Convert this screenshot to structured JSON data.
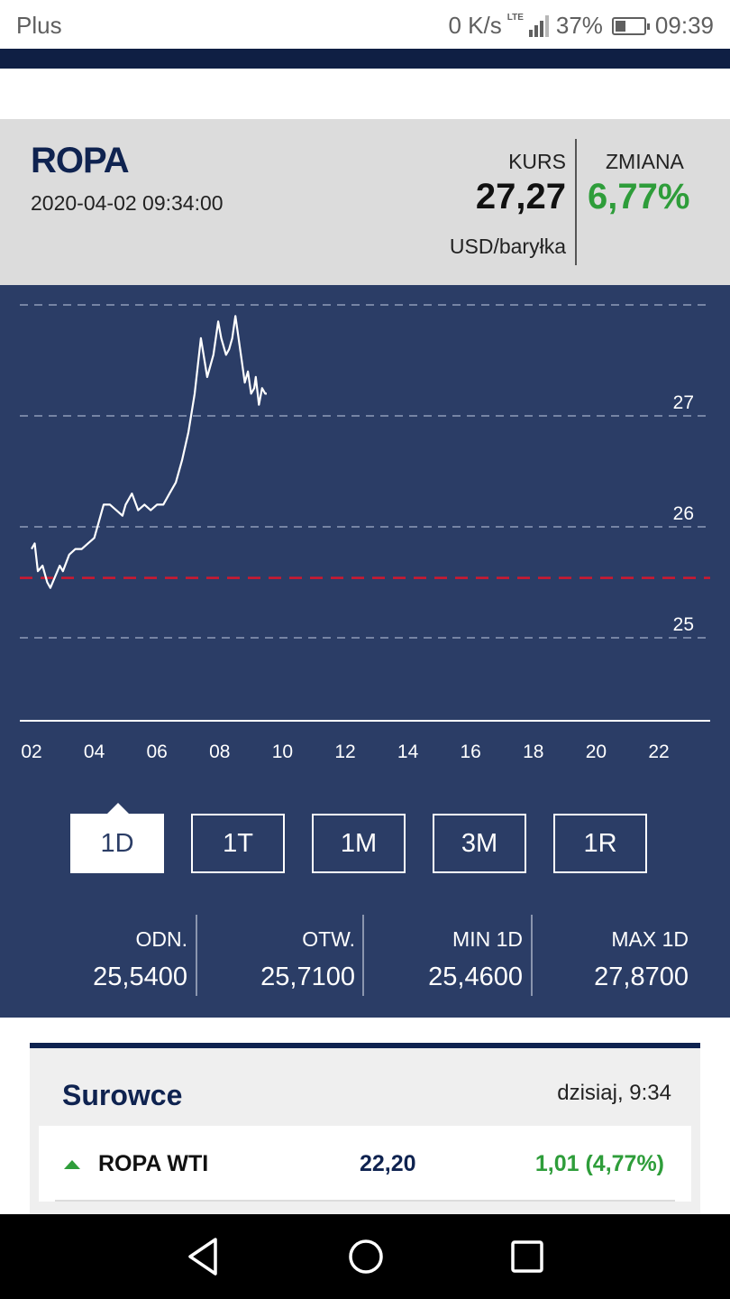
{
  "status_bar": {
    "carrier": "Plus",
    "network_speed": "0 K/s",
    "network_type": "LTE",
    "battery_percent": "37%",
    "battery_level": 0.37,
    "time": "09:39"
  },
  "header": {
    "title": "ROPA",
    "datetime": "2020-04-02 09:34:00",
    "kurs_label": "KURS",
    "kurs_value": "27,27",
    "unit": "USD/baryłka",
    "zmiana_label": "ZMIANA",
    "zmiana_value": "6,77%"
  },
  "chart_data": {
    "type": "line",
    "x_ticks": [
      "02",
      "04",
      "06",
      "08",
      "10",
      "12",
      "14",
      "16",
      "18",
      "20",
      "22"
    ],
    "y_ticks": [
      "25",
      "26",
      "27"
    ],
    "ylim": [
      24.2,
      28.2
    ],
    "xlim": [
      2,
      24
    ],
    "reference_line": 25.54,
    "series": [
      {
        "x": [
          2.0,
          2.1,
          2.2,
          2.35,
          2.5,
          2.6,
          2.75,
          2.9,
          3.0,
          3.2,
          3.4,
          3.6,
          3.8,
          4.0,
          4.1,
          4.3,
          4.5,
          4.7,
          4.9,
          5.0,
          5.2,
          5.4,
          5.6,
          5.8,
          6.0,
          6.2,
          6.4,
          6.6,
          6.8,
          7.0,
          7.2,
          7.4,
          7.6,
          7.8,
          7.95,
          8.05,
          8.2,
          8.3,
          8.4,
          8.5,
          8.6,
          8.7,
          8.8,
          8.9,
          9.0,
          9.1,
          9.15,
          9.25,
          9.35,
          9.45,
          9.5
        ],
        "values": [
          25.8,
          25.85,
          25.6,
          25.65,
          25.5,
          25.45,
          25.55,
          25.65,
          25.6,
          25.75,
          25.8,
          25.8,
          25.85,
          25.9,
          26.0,
          26.2,
          26.2,
          26.15,
          26.1,
          26.2,
          26.3,
          26.15,
          26.2,
          26.15,
          26.2,
          26.2,
          26.3,
          26.4,
          26.6,
          26.85,
          27.2,
          27.7,
          27.35,
          27.55,
          27.85,
          27.7,
          27.55,
          27.6,
          27.7,
          27.9,
          27.7,
          27.5,
          27.3,
          27.4,
          27.2,
          27.25,
          27.35,
          27.1,
          27.25,
          27.2,
          27.2
        ]
      }
    ],
    "grid": true
  },
  "ranges": {
    "active": "1D",
    "items": [
      "1D",
      "1T",
      "1M",
      "3M",
      "1R"
    ]
  },
  "stats": [
    {
      "label": "ODN.",
      "value": "25,5400"
    },
    {
      "label": "OTW.",
      "value": "25,7100"
    },
    {
      "label": "MIN 1D",
      "value": "25,4600"
    },
    {
      "label": "MAX 1D",
      "value": "27,8700"
    }
  ],
  "commodities": {
    "title": "Surowce",
    "time": "dzisiaj, 9:34",
    "rows": [
      {
        "name": "ROPA WTI",
        "price": "22,20",
        "change": "1,01 (4,77%)"
      }
    ]
  },
  "colors": {
    "navy": "#0f2350",
    "panel": "#2b3d66",
    "positive": "#2e9d3a",
    "reference": "#d0182f"
  },
  "icons": {
    "back": "triangle-back-icon",
    "home": "circle-home-icon",
    "recents": "square-recents-icon"
  }
}
